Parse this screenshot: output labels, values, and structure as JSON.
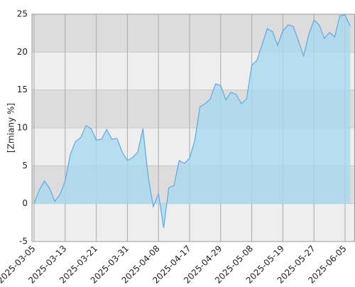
{
  "chart_data": {
    "type": "area",
    "y_label": "[Zmiany %]",
    "categories": [
      "2025-03-05",
      null,
      null,
      null,
      null,
      null,
      "2025-03-13",
      null,
      null,
      null,
      null,
      null,
      "2025-03-21",
      null,
      null,
      null,
      null,
      null,
      "2025-03-31",
      null,
      null,
      null,
      null,
      null,
      "2025-04-08",
      null,
      null,
      null,
      null,
      null,
      "2025-04-17",
      null,
      null,
      null,
      null,
      null,
      "2025-04-29",
      null,
      null,
      null,
      null,
      null,
      "2025-05-08",
      null,
      null,
      null,
      null,
      null,
      "2025-05-19",
      null,
      null,
      null,
      null,
      null,
      "2025-05-27",
      null,
      null,
      null,
      null,
      null,
      "2025-06-05",
      null
    ],
    "values": [
      0,
      1.8,
      3,
      2,
      0.3,
      1.2,
      3,
      6.5,
      8.2,
      8.7,
      10.3,
      9.9,
      8.4,
      8.5,
      9.8,
      8.5,
      8.6,
      6.8,
      5.7,
      6.1,
      6.8,
      9.9,
      3.6,
      -0.4,
      1.3,
      -3.2,
      2.1,
      2.4,
      5.7,
      5.3,
      6,
      8.3,
      12.8,
      13.2,
      13.8,
      15.8,
      15.6,
      13.7,
      14.7,
      14.4,
      13.2,
      13.8,
      18.3,
      18.9,
      21,
      23.1,
      22.7,
      20.9,
      22.8,
      23.6,
      23.4,
      21.5,
      19.5,
      22.3,
      24.2,
      23.6,
      21.8,
      22.6,
      22,
      24.8,
      24.9,
      23.4
    ],
    "color": "#5aaae6",
    "fill_color": "#a9d9ee",
    "ylim": [
      -5,
      25
    ],
    "yticks": [
      -5,
      0,
      5,
      10,
      15,
      20,
      25
    ],
    "band_colors": [
      "#eeeeee",
      "#dcdcdc"
    ],
    "grid": true
  }
}
